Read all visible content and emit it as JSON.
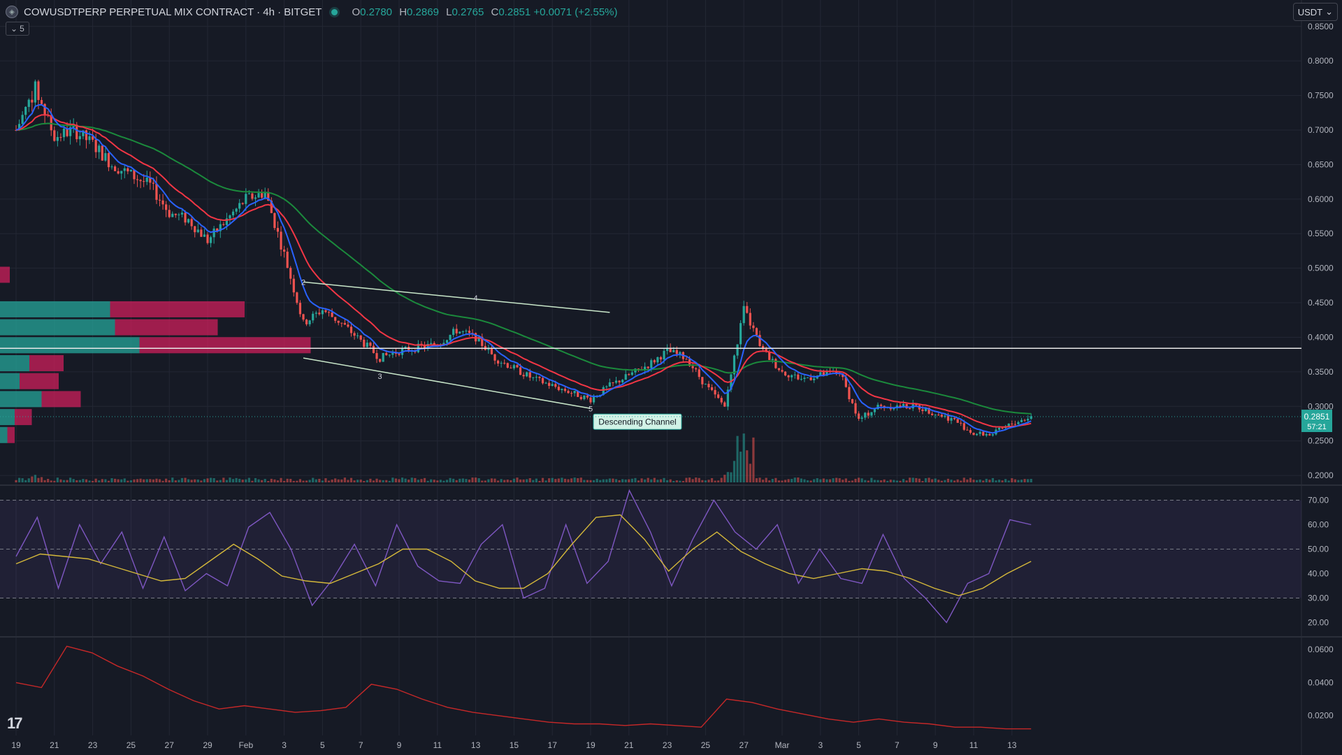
{
  "header": {
    "symbol": "COWUSDTPERP PERPETUAL MIX CONTRACT · 4h · BITGET",
    "open_label": "O",
    "open": "0.2780",
    "high_label": "H",
    "high": "0.2869",
    "low_label": "L",
    "low": "0.2765",
    "close_label": "C",
    "close": "0.2851",
    "change": "+0.0071 (+2.55%)",
    "indicator_count": "5",
    "currency": "USDT"
  },
  "colors": {
    "background": "#161a25",
    "up": "#26a69a",
    "down": "#ef5350",
    "ema_fast": "#2962ff",
    "ema_mid": "#f23645",
    "ema_slow": "#1b8a3c",
    "rsi": "#7e57c2",
    "rsi_ma": "#d4b83a",
    "atr": "#c62828",
    "grid": "#232734"
  },
  "chart_data": [
    {
      "type": "candlestick",
      "panel": "price",
      "timeframe": "4h",
      "ylim": [
        0.19,
        0.87
      ],
      "ytick_labels": [
        "0.8500",
        "0.8000",
        "0.7500",
        "0.7000",
        "0.6500",
        "0.6000",
        "0.5500",
        "0.5000",
        "0.4500",
        "0.4000",
        "0.3500",
        "0.3000",
        "0.2500",
        "0.2000"
      ],
      "yticks": [
        0.85,
        0.8,
        0.75,
        0.7,
        0.65,
        0.6,
        0.55,
        0.5,
        0.45,
        0.4,
        0.35,
        0.3,
        0.25,
        0.2
      ],
      "xtick_labels": [
        "19",
        "21",
        "23",
        "25",
        "27",
        "29",
        "Feb",
        "3",
        "5",
        "7",
        "9",
        "11",
        "13",
        "15",
        "17",
        "19",
        "21",
        "23",
        "25",
        "27",
        "Mar",
        "3",
        "5",
        "7",
        "9",
        "11",
        "13"
      ],
      "approx_close_path": [
        {
          "date": "Jan 19",
          "value": 0.7
        },
        {
          "date": "Jan 20",
          "value": 0.76
        },
        {
          "date": "Jan 21",
          "value": 0.69
        },
        {
          "date": "Jan 22",
          "value": 0.7
        },
        {
          "date": "Jan 23",
          "value": 0.68
        },
        {
          "date": "Jan 24",
          "value": 0.65
        },
        {
          "date": "Jan 26",
          "value": 0.62
        },
        {
          "date": "Jan 27",
          "value": 0.58
        },
        {
          "date": "Jan 28",
          "value": 0.57
        },
        {
          "date": "Jan 29",
          "value": 0.54
        },
        {
          "date": "Jan 31",
          "value": 0.6
        },
        {
          "date": "Feb 1",
          "value": 0.61
        },
        {
          "date": "Feb 2",
          "value": 0.52
        },
        {
          "date": "Feb 3",
          "value": 0.42
        },
        {
          "date": "Feb 4",
          "value": 0.44
        },
        {
          "date": "Feb 5",
          "value": 0.42
        },
        {
          "date": "Feb 7",
          "value": 0.37
        },
        {
          "date": "Feb 8",
          "value": 0.38
        },
        {
          "date": "Feb 10",
          "value": 0.39
        },
        {
          "date": "Feb 11",
          "value": 0.41
        },
        {
          "date": "Feb 12",
          "value": 0.4
        },
        {
          "date": "Feb 13",
          "value": 0.37
        },
        {
          "date": "Feb 15",
          "value": 0.34
        },
        {
          "date": "Feb 17",
          "value": 0.32
        },
        {
          "date": "Feb 18",
          "value": 0.31
        },
        {
          "date": "Feb 19",
          "value": 0.33
        },
        {
          "date": "Feb 21",
          "value": 0.36
        },
        {
          "date": "Feb 22",
          "value": 0.38
        },
        {
          "date": "Feb 23",
          "value": 0.37
        },
        {
          "date": "Feb 24",
          "value": 0.33
        },
        {
          "date": "Feb 25",
          "value": 0.3
        },
        {
          "date": "Feb 26",
          "value": 0.44
        },
        {
          "date": "Feb 27",
          "value": 0.38
        },
        {
          "date": "Feb 28",
          "value": 0.35
        },
        {
          "date": "Mar 1",
          "value": 0.34
        },
        {
          "date": "Mar 3",
          "value": 0.35
        },
        {
          "date": "Mar 4",
          "value": 0.28
        },
        {
          "date": "Mar 5",
          "value": 0.3
        },
        {
          "date": "Mar 7",
          "value": 0.3
        },
        {
          "date": "Mar 9",
          "value": 0.28
        },
        {
          "date": "Mar 10",
          "value": 0.26
        },
        {
          "date": "Mar 11",
          "value": 0.26
        },
        {
          "date": "Mar 12",
          "value": 0.275
        },
        {
          "date": "Mar 13",
          "value": 0.2851
        }
      ],
      "last_price": "0.2851",
      "countdown": "57:21",
      "horizontal_line": 0.384,
      "annotation": {
        "label": "Descending Channel",
        "upper_line": [
          {
            "date": "Feb 3",
            "value": 0.48
          },
          {
            "date": "Feb 19",
            "value": 0.436
          }
        ],
        "lower_line": [
          {
            "date": "Feb 3",
            "value": 0.37
          },
          {
            "date": "Feb 18",
            "value": 0.297
          }
        ],
        "points": [
          {
            "label": "2",
            "date": "Feb 3",
            "value": 0.48
          },
          {
            "label": "3",
            "date": "Feb 7",
            "value": 0.344
          },
          {
            "label": "4",
            "date": "Feb 12",
            "value": 0.457
          },
          {
            "label": "5",
            "date": "Feb 18",
            "value": 0.297
          }
        ]
      },
      "volume_profile": [
        {
          "price": 0.49,
          "up": 0.0,
          "down": 0.04
        },
        {
          "price": 0.44,
          "up": 0.45,
          "down": 0.55
        },
        {
          "price": 0.414,
          "up": 0.47,
          "down": 0.42
        },
        {
          "price": 0.388,
          "up": 0.57,
          "down": 0.7
        },
        {
          "price": 0.362,
          "up": 0.12,
          "down": 0.14
        },
        {
          "price": 0.336,
          "up": 0.08,
          "down": 0.16
        },
        {
          "price": 0.31,
          "up": 0.17,
          "down": 0.16
        },
        {
          "price": 0.284,
          "up": 0.06,
          "down": 0.07
        },
        {
          "price": 0.258,
          "up": 0.03,
          "down": 0.03
        }
      ]
    },
    {
      "type": "line",
      "panel": "rsi",
      "ylim": [
        15,
        75
      ],
      "ytick_labels": [
        "70.00",
        "60.00",
        "50.00",
        "40.00",
        "30.00",
        "20.00"
      ],
      "yticks": [
        70,
        60,
        50,
        40,
        30,
        20
      ],
      "bands": [
        30,
        50,
        70
      ],
      "series": [
        {
          "values": [
            47,
            63,
            34,
            60,
            44,
            57,
            34,
            55,
            33,
            40,
            35,
            59,
            65,
            50,
            27,
            38,
            52,
            35,
            60,
            43,
            37,
            36,
            52,
            60,
            30,
            34,
            60,
            36,
            45,
            74,
            57,
            35,
            54,
            70,
            57,
            50,
            60,
            36,
            50,
            38,
            36,
            56,
            38,
            30,
            20,
            36,
            40,
            62,
            60
          ]
        },
        {
          "values": [
            44,
            48,
            47,
            46,
            43,
            40,
            37,
            38,
            45,
            52,
            46,
            39,
            37,
            36,
            40,
            44,
            50,
            50,
            45,
            37,
            34,
            34,
            40,
            52,
            63,
            64,
            54,
            41,
            50,
            57,
            49,
            44,
            40,
            38,
            40,
            42,
            41,
            38,
            34,
            31,
            34,
            40,
            45
          ]
        }
      ]
    },
    {
      "type": "line",
      "panel": "atr",
      "ylim": [
        0.008,
        0.066
      ],
      "ytick_labels": [
        "0.0600",
        "0.0400",
        "0.0200"
      ],
      "yticks": [
        0.06,
        0.04,
        0.02
      ],
      "series": [
        {
          "values": [
            0.04,
            0.037,
            0.062,
            0.058,
            0.05,
            0.044,
            0.036,
            0.029,
            0.024,
            0.026,
            0.024,
            0.022,
            0.023,
            0.025,
            0.039,
            0.036,
            0.03,
            0.025,
            0.022,
            0.02,
            0.018,
            0.016,
            0.015,
            0.015,
            0.014,
            0.015,
            0.014,
            0.013,
            0.03,
            0.028,
            0.024,
            0.021,
            0.018,
            0.016,
            0.018,
            0.016,
            0.015,
            0.013,
            0.013,
            0.012,
            0.012
          ]
        }
      ]
    }
  ]
}
